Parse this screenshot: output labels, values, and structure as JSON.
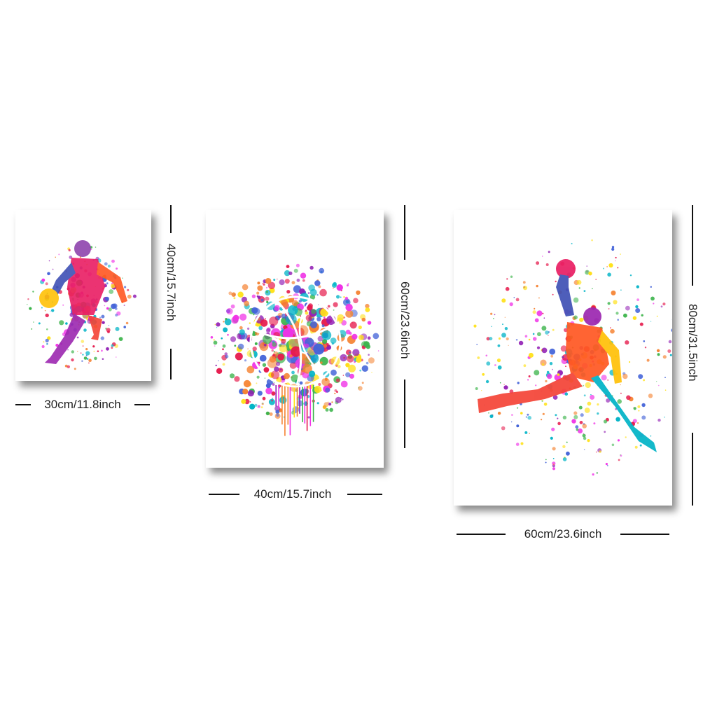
{
  "posters": [
    {
      "subject": "basketball-player-dribbling",
      "width_label": "30cm/11.8inch",
      "height_label": "40cm/15.7inch"
    },
    {
      "subject": "basketball-splash",
      "width_label": "40cm/15.7inch",
      "height_label": "60cm/23.6inch"
    },
    {
      "subject": "basketball-player-dunking",
      "width_label": "60cm/23.6inch",
      "height_label": "80cm/31.5inch"
    }
  ],
  "palette": [
    "#e6194b",
    "#f58231",
    "#ffe119",
    "#3cb44b",
    "#4363d8",
    "#911eb4",
    "#f032e6",
    "#00b3c6"
  ]
}
